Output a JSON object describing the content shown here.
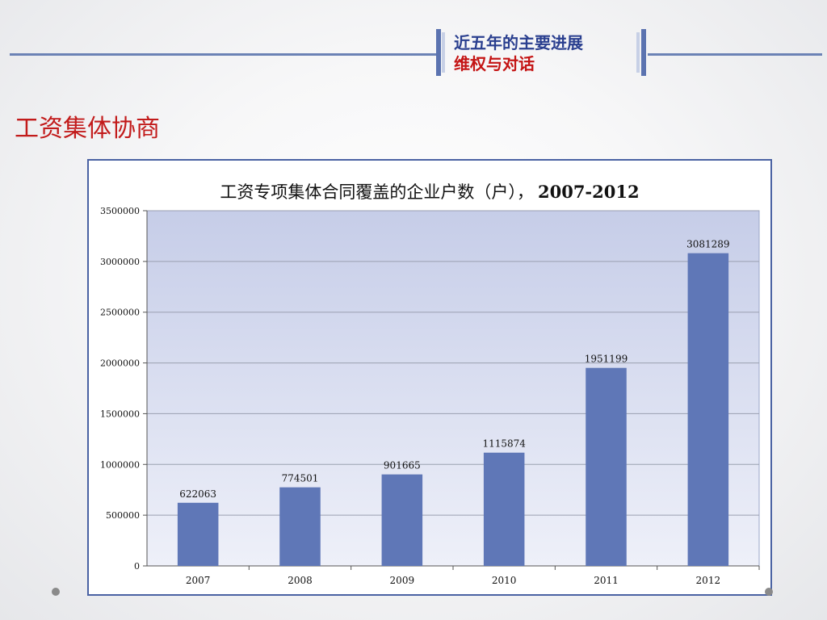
{
  "header": {
    "line1": "近五年的主要进展",
    "line2": "维权与对话"
  },
  "page_title": "工资集体协商",
  "colors": {
    "accent": "#6b82b5",
    "header_text": "#2a3f8f",
    "red": "#c21b1b",
    "bar": "#5f77b7",
    "plot_top": "#c6cde8",
    "plot_bottom": "#eef0f9",
    "frame": "#4a62a3"
  },
  "chart_data": {
    "type": "bar",
    "title_main": "工资专项集体合同覆盖的企业户数（户），",
    "title_years": "2007-2012",
    "categories": [
      "2007",
      "2008",
      "2009",
      "2010",
      "2011",
      "2012"
    ],
    "values": [
      622063,
      774501,
      901665,
      1115874,
      1951199,
      3081289
    ],
    "data_labels": [
      "622063",
      "774501",
      "901665",
      "1115874",
      "1951199",
      "3081289"
    ],
    "yticks": [
      "0",
      "500000",
      "1000000",
      "1500000",
      "2000000",
      "2500000",
      "3000000",
      "3500000"
    ],
    "ylim": [
      0,
      3500000
    ],
    "ytick_step": 500000,
    "xlabel": "",
    "ylabel": "",
    "grid": true,
    "legend": "none"
  }
}
